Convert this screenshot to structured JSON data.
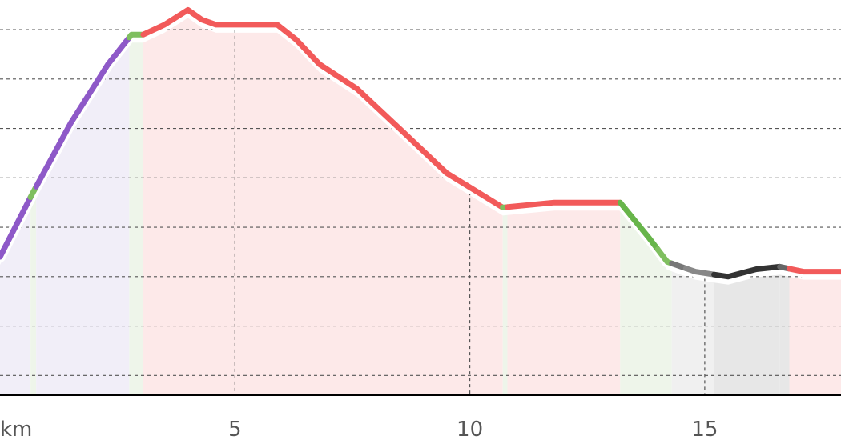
{
  "chart_data": {
    "type": "area",
    "title": "",
    "xlabel": "",
    "ylabel": "",
    "x_unit_label": "km",
    "xlim": [
      0,
      17.9
    ],
    "ylim": [
      0,
      8
    ],
    "x_ticks": [
      5,
      10,
      15
    ],
    "y_grid_values": [
      0.4,
      1.4,
      2.4,
      3.4,
      4.4,
      5.4,
      6.4,
      7.4
    ],
    "grid": true,
    "legend": "none",
    "profile": [
      {
        "x": 0,
        "y": 2.8
      },
      {
        "x": 0.7,
        "y": 4.1
      },
      {
        "x": 1.5,
        "y": 5.5
      },
      {
        "x": 2.3,
        "y": 6.7
      },
      {
        "x": 2.8,
        "y": 7.3
      },
      {
        "x": 3.05,
        "y": 7.3
      },
      {
        "x": 3.5,
        "y": 7.5
      },
      {
        "x": 4.0,
        "y": 7.8
      },
      {
        "x": 4.3,
        "y": 7.6
      },
      {
        "x": 4.6,
        "y": 7.5
      },
      {
        "x": 5.2,
        "y": 7.5
      },
      {
        "x": 5.9,
        "y": 7.5
      },
      {
        "x": 6.3,
        "y": 7.2
      },
      {
        "x": 6.8,
        "y": 6.7
      },
      {
        "x": 7.6,
        "y": 6.2
      },
      {
        "x": 8.5,
        "y": 5.4
      },
      {
        "x": 9.5,
        "y": 4.5
      },
      {
        "x": 10.7,
        "y": 3.8
      },
      {
        "x": 11.8,
        "y": 3.9
      },
      {
        "x": 13.2,
        "y": 3.9
      },
      {
        "x": 13.8,
        "y": 3.2
      },
      {
        "x": 14.2,
        "y": 2.7
      },
      {
        "x": 14.8,
        "y": 2.5
      },
      {
        "x": 15.5,
        "y": 2.4
      },
      {
        "x": 16.1,
        "y": 2.55
      },
      {
        "x": 16.6,
        "y": 2.6
      },
      {
        "x": 17.1,
        "y": 2.5
      },
      {
        "x": 17.9,
        "y": 2.5
      }
    ],
    "segments": [
      {
        "x0": 0.0,
        "x1": 0.65,
        "color": "#8e59c8",
        "fill": "#f1eef8"
      },
      {
        "x0": 0.65,
        "x1": 0.77,
        "color": "#7fbf5f",
        "fill": "#eef5ea"
      },
      {
        "x0": 0.77,
        "x1": 2.75,
        "color": "#8e59c8",
        "fill": "#f1eef8"
      },
      {
        "x0": 2.75,
        "x1": 3.05,
        "color": "#7fbf5f",
        "fill": "#eef5ea"
      },
      {
        "x0": 3.05,
        "x1": 10.7,
        "color": "#f25a5a",
        "fill": "#fde9e9"
      },
      {
        "x0": 10.7,
        "x1": 10.8,
        "color": "#7fbf5f",
        "fill": "#eef5ea"
      },
      {
        "x0": 10.8,
        "x1": 13.2,
        "color": "#f25a5a",
        "fill": "#fde9e9"
      },
      {
        "x0": 13.2,
        "x1": 14.0,
        "color": "#67b54a",
        "fill": "#eef5ea"
      },
      {
        "x0": 14.0,
        "x1": 14.3,
        "color": "#7fbf5f",
        "fill": "#eef5ea"
      },
      {
        "x0": 14.3,
        "x1": 14.6,
        "color": "#777777",
        "fill": "#f0f0f0"
      },
      {
        "x0": 14.6,
        "x1": 15.2,
        "color": "#888888",
        "fill": "#f0f0f0"
      },
      {
        "x0": 15.2,
        "x1": 16.6,
        "color": "#333333",
        "fill": "#e7e7e7"
      },
      {
        "x0": 16.6,
        "x1": 16.8,
        "color": "#666666",
        "fill": "#e7e7e7"
      },
      {
        "x0": 16.8,
        "x1": 17.9,
        "color": "#f25a5a",
        "fill": "#fde9e9"
      }
    ]
  }
}
